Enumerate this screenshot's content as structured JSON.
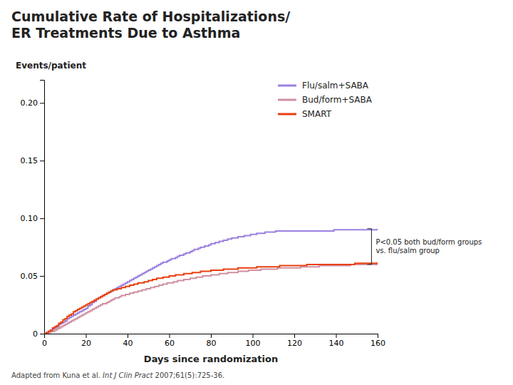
{
  "chart_data": {
    "type": "line",
    "title": "Cumulative Rate of Hospitalizations/\nER Treatments Due to Asthma",
    "y_label": "Events/patient",
    "x_label": "Days since randomization",
    "xlim": [
      0,
      160
    ],
    "ylim": [
      0,
      0.22
    ],
    "xticks": [
      0,
      20,
      40,
      60,
      80,
      100,
      120,
      140,
      160
    ],
    "yticks": [
      0,
      0.05,
      {
        "value": 0.1,
        "label": "0.10"
      },
      0.15,
      {
        "value": 0.2,
        "label": "0.20"
      }
    ],
    "grid": false,
    "legend": "upper right",
    "line_style": "steps",
    "x": [
      0,
      1,
      2,
      3,
      4,
      5,
      6,
      7,
      8,
      9,
      10,
      11,
      12,
      13,
      14,
      15,
      16,
      17,
      18,
      19,
      20,
      21,
      22,
      23,
      24,
      25,
      26,
      27,
      28,
      29,
      30,
      31,
      32,
      33,
      34,
      35,
      36,
      37,
      38,
      39,
      40,
      41,
      42,
      43,
      44,
      45,
      46,
      47,
      48,
      49,
      50,
      51,
      52,
      53,
      54,
      55,
      56,
      57,
      58,
      59,
      60,
      61,
      62,
      63,
      64,
      65,
      66,
      67,
      68,
      69,
      70,
      71,
      72,
      73,
      74,
      75,
      76,
      77,
      78,
      79,
      80,
      81,
      82,
      83,
      84,
      85,
      86,
      87,
      88,
      89,
      90,
      91,
      92,
      93,
      94,
      95,
      96,
      97,
      98,
      99,
      100,
      101,
      102,
      103,
      104,
      105,
      106,
      107,
      108,
      109,
      110,
      111,
      112,
      113,
      114,
      115,
      116,
      117,
      118,
      119,
      120,
      121,
      122,
      123,
      124,
      125,
      126,
      127,
      128,
      129,
      130,
      131,
      132,
      133,
      134,
      135,
      136,
      137,
      138,
      139,
      140,
      141,
      142,
      143,
      144,
      145,
      146,
      147,
      148,
      149,
      150,
      151,
      152,
      153,
      154,
      155,
      156,
      157,
      158,
      159,
      160
    ],
    "series": [
      {
        "name": "Flu/salm+SABA",
        "color": "#9b80e0",
        "values": [
          0,
          0.001,
          0.002,
          0.003,
          0.004,
          0.005,
          0.006,
          0.008,
          0.009,
          0.01,
          0.011,
          0.013,
          0.014,
          0.015,
          0.016,
          0.017,
          0.018,
          0.019,
          0.02,
          0.021,
          0.022,
          0.024,
          0.025,
          0.027,
          0.028,
          0.03,
          0.031,
          0.032,
          0.033,
          0.034,
          0.035,
          0.036,
          0.037,
          0.038,
          0.039,
          0.04,
          0.041,
          0.042,
          0.043,
          0.044,
          0.045,
          0.046,
          0.047,
          0.048,
          0.049,
          0.05,
          0.051,
          0.052,
          0.053,
          0.054,
          0.055,
          0.056,
          0.057,
          0.058,
          0.059,
          0.06,
          0.061,
          0.062,
          0.062,
          0.063,
          0.064,
          0.065,
          0.065,
          0.066,
          0.067,
          0.068,
          0.068,
          0.069,
          0.07,
          0.07,
          0.071,
          0.072,
          0.073,
          0.073,
          0.074,
          0.075,
          0.075,
          0.076,
          0.076,
          0.077,
          0.078,
          0.078,
          0.079,
          0.079,
          0.08,
          0.08,
          0.081,
          0.081,
          0.082,
          0.082,
          0.083,
          0.083,
          0.083,
          0.084,
          0.084,
          0.084,
          0.085,
          0.085,
          0.085,
          0.086,
          0.086,
          0.086,
          0.087,
          0.087,
          0.087,
          0.087,
          0.088,
          0.088,
          0.088,
          0.088,
          0.088,
          0.089,
          0.089,
          0.089,
          0.089,
          0.089,
          0.089,
          0.089,
          0.089,
          0.089,
          0.089,
          0.089,
          0.089,
          0.089,
          0.089,
          0.089,
          0.089,
          0.089,
          0.089,
          0.089,
          0.089,
          0.089,
          0.089,
          0.089,
          0.089,
          0.089,
          0.089,
          0.089,
          0.089,
          0.09,
          0.09,
          0.09,
          0.09,
          0.09,
          0.09,
          0.09,
          0.09,
          0.09,
          0.09,
          0.09,
          0.09,
          0.09,
          0.09,
          0.09,
          0.09,
          0.09,
          0.09,
          0.09,
          0.09,
          0.09,
          0.091
        ]
      },
      {
        "name": "Bud/form+SABA",
        "color": "#d090a0",
        "values": [
          0,
          0.0005,
          0.001,
          0.0015,
          0.002,
          0.003,
          0.004,
          0.005,
          0.006,
          0.007,
          0.008,
          0.009,
          0.01,
          0.011,
          0.012,
          0.013,
          0.014,
          0.015,
          0.016,
          0.017,
          0.018,
          0.019,
          0.02,
          0.021,
          0.022,
          0.023,
          0.024,
          0.025,
          0.026,
          0.026,
          0.027,
          0.028,
          0.029,
          0.03,
          0.031,
          0.031,
          0.032,
          0.033,
          0.033,
          0.034,
          0.034,
          0.035,
          0.035,
          0.036,
          0.036,
          0.037,
          0.037,
          0.038,
          0.038,
          0.039,
          0.039,
          0.04,
          0.04,
          0.041,
          0.041,
          0.042,
          0.042,
          0.043,
          0.043,
          0.044,
          0.044,
          0.044,
          0.045,
          0.045,
          0.046,
          0.046,
          0.046,
          0.047,
          0.047,
          0.047,
          0.048,
          0.048,
          0.048,
          0.049,
          0.049,
          0.049,
          0.05,
          0.05,
          0.05,
          0.05,
          0.051,
          0.051,
          0.051,
          0.051,
          0.052,
          0.052,
          0.052,
          0.052,
          0.053,
          0.053,
          0.053,
          0.053,
          0.053,
          0.054,
          0.054,
          0.054,
          0.054,
          0.054,
          0.055,
          0.055,
          0.055,
          0.055,
          0.055,
          0.055,
          0.056,
          0.056,
          0.056,
          0.056,
          0.056,
          0.056,
          0.056,
          0.056,
          0.057,
          0.057,
          0.057,
          0.057,
          0.057,
          0.057,
          0.057,
          0.057,
          0.057,
          0.057,
          0.057,
          0.058,
          0.058,
          0.058,
          0.058,
          0.058,
          0.058,
          0.058,
          0.058,
          0.058,
          0.059,
          0.059,
          0.059,
          0.059,
          0.059,
          0.059,
          0.059,
          0.059,
          0.059,
          0.059,
          0.059,
          0.059,
          0.059,
          0.059,
          0.059,
          0.06,
          0.06,
          0.06,
          0.06,
          0.06,
          0.06,
          0.06,
          0.06,
          0.06,
          0.06,
          0.06,
          0.06,
          0.06,
          0.06
        ]
      },
      {
        "name": "SMART",
        "color": "#e84010",
        "values": [
          0,
          0.001,
          0.002,
          0.003,
          0.005,
          0.006,
          0.007,
          0.009,
          0.01,
          0.012,
          0.013,
          0.015,
          0.016,
          0.017,
          0.019,
          0.02,
          0.021,
          0.022,
          0.023,
          0.024,
          0.025,
          0.026,
          0.027,
          0.028,
          0.029,
          0.03,
          0.031,
          0.032,
          0.033,
          0.034,
          0.035,
          0.036,
          0.037,
          0.038,
          0.038,
          0.039,
          0.039,
          0.04,
          0.04,
          0.041,
          0.041,
          0.042,
          0.042,
          0.043,
          0.043,
          0.044,
          0.044,
          0.044,
          0.045,
          0.045,
          0.046,
          0.046,
          0.047,
          0.047,
          0.048,
          0.048,
          0.048,
          0.049,
          0.049,
          0.049,
          0.05,
          0.05,
          0.05,
          0.051,
          0.051,
          0.051,
          0.051,
          0.052,
          0.052,
          0.052,
          0.052,
          0.053,
          0.053,
          0.053,
          0.053,
          0.054,
          0.054,
          0.054,
          0.054,
          0.054,
          0.055,
          0.055,
          0.055,
          0.055,
          0.055,
          0.055,
          0.056,
          0.056,
          0.056,
          0.056,
          0.056,
          0.056,
          0.056,
          0.057,
          0.057,
          0.057,
          0.057,
          0.057,
          0.057,
          0.057,
          0.057,
          0.057,
          0.058,
          0.058,
          0.058,
          0.058,
          0.058,
          0.058,
          0.058,
          0.058,
          0.058,
          0.058,
          0.058,
          0.059,
          0.059,
          0.059,
          0.059,
          0.059,
          0.059,
          0.059,
          0.059,
          0.059,
          0.059,
          0.059,
          0.059,
          0.059,
          0.06,
          0.06,
          0.06,
          0.06,
          0.06,
          0.06,
          0.06,
          0.06,
          0.06,
          0.06,
          0.06,
          0.06,
          0.06,
          0.06,
          0.06,
          0.06,
          0.06,
          0.06,
          0.06,
          0.06,
          0.06,
          0.06,
          0.06,
          0.061,
          0.061,
          0.061,
          0.061,
          0.061,
          0.061,
          0.061,
          0.061,
          0.061,
          0.061,
          0.061,
          0.062
        ]
      }
    ],
    "annotation": {
      "text": "P<0.05 both bud/form groups\nvs. flu/salm group",
      "x": 155,
      "y_range": [
        0.091,
        0.06
      ]
    },
    "source": [
      "Adapted from Kuna et al. ",
      "Int J Clin Pract",
      " 2007;61(5):725-36."
    ]
  }
}
